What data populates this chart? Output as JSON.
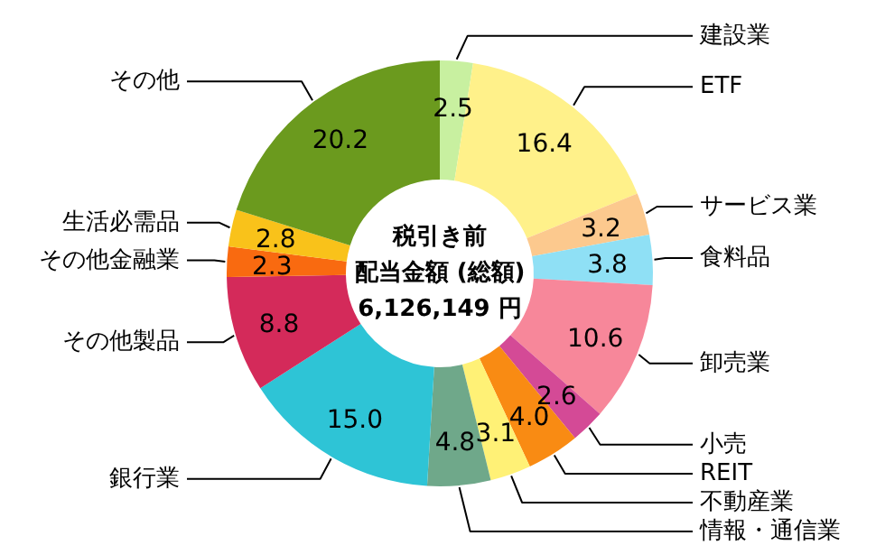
{
  "chart_data": {
    "type": "donut",
    "title": "税引き前",
    "subtitle": "配当金額 (総額)",
    "annotations": [
      "6,126,149 円"
    ],
    "value_labels": [
      "2.5",
      "16.4",
      "3.2",
      "3.8",
      "10.6",
      "2.6",
      "4.0",
      "3.1",
      "4.8",
      "15.0",
      "8.8",
      "2.3",
      "2.8",
      "20.2"
    ],
    "categories": [
      "建設業",
      "ETF",
      "サービス業",
      "食料品",
      "卸売業",
      "小売",
      "REIT",
      "不動産業",
      "情報・通信業",
      "銀行業",
      "その他製品",
      "その他金融業",
      "生活必需品",
      "その他"
    ],
    "values": [
      2.5,
      16.4,
      3.2,
      3.8,
      10.6,
      2.6,
      4.0,
      3.1,
      4.8,
      15.0,
      8.8,
      2.3,
      2.8,
      20.2
    ],
    "colors": [
      "#c8f0a0",
      "#fff18a",
      "#fcc98e",
      "#8fe0f5",
      "#f7879a",
      "#d44a96",
      "#f98b13",
      "#fff176",
      "#6fa88a",
      "#2ec4d6",
      "#d42a5a",
      "#f96a10",
      "#f9c21a",
      "#6b9a1e"
    ]
  }
}
